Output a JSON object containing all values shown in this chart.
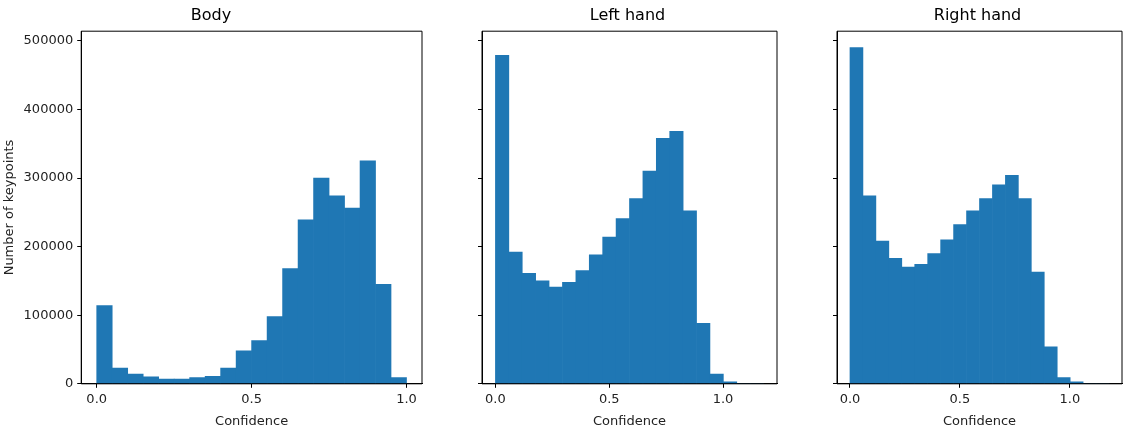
{
  "chart_data": [
    {
      "type": "histogram",
      "title": "Body",
      "xlabel": "Confidence",
      "ylabel": "Number of keypoints",
      "color": "#1f77b4",
      "bins": [
        0,
        0.05,
        0.1,
        0.15,
        0.2,
        0.25,
        0.3,
        0.35,
        0.4,
        0.45,
        0.5,
        0.55,
        0.6,
        0.65,
        0.7,
        0.75,
        0.8,
        0.85,
        0.9,
        0.95,
        1.0
      ],
      "values": [
        114000,
        23000,
        14000,
        10000,
        7000,
        7000,
        9000,
        11000,
        23000,
        48000,
        63000,
        98000,
        168000,
        239000,
        300000,
        274000,
        256000,
        325000,
        145000,
        9000
      ],
      "xlim": [
        -0.05,
        1.05
      ],
      "xticks": [
        {
          "value": 0,
          "label": "0.0"
        },
        {
          "value": 0.5,
          "label": "0.5"
        },
        {
          "value": 1,
          "label": "1.0"
        }
      ],
      "ylim": [
        0,
        514000
      ],
      "yticks": [
        0,
        100000,
        200000,
        300000,
        400000,
        500000
      ],
      "grid": false
    },
    {
      "type": "histogram",
      "title": "Left hand",
      "xlabel": "Confidence",
      "color": "#1f77b4",
      "bins": [
        0,
        0.0589,
        0.1178,
        0.1767,
        0.2356,
        0.2945,
        0.3534,
        0.4123,
        0.4712,
        0.5301,
        0.589,
        0.6479,
        0.7068,
        0.7657,
        0.8246,
        0.8835,
        0.9424,
        1.0013,
        1.0602,
        1.1191,
        1.178
      ],
      "values": [
        479000,
        192000,
        161000,
        150000,
        141000,
        148000,
        165000,
        188000,
        214000,
        241000,
        270000,
        310000,
        358000,
        368000,
        252000,
        88000,
        14000,
        3000,
        0,
        0
      ],
      "xlim": [
        -0.059,
        1.237
      ],
      "xticks": [
        {
          "value": 0,
          "label": "0.0"
        },
        {
          "value": 0.5,
          "label": "0.5"
        },
        {
          "value": 1,
          "label": "1.0"
        }
      ],
      "ylim": [
        0,
        514000
      ],
      "yticks": [
        0,
        100000,
        200000,
        300000,
        400000,
        500000
      ],
      "tick_labels": "x",
      "grid": false
    },
    {
      "type": "histogram",
      "title": "Right hand",
      "xlabel": "Confidence",
      "color": "#1f77b4",
      "bins": [
        0,
        0.0589,
        0.1178,
        0.1767,
        0.2356,
        0.2945,
        0.3534,
        0.4123,
        0.4712,
        0.5301,
        0.589,
        0.6479,
        0.7068,
        0.7657,
        0.8246,
        0.8835,
        0.9424,
        1.0013,
        1.0602,
        1.1191,
        1.178
      ],
      "values": [
        490000,
        274000,
        208000,
        183000,
        170000,
        174000,
        190000,
        210000,
        232000,
        252000,
        270000,
        290000,
        304000,
        270000,
        163000,
        54000,
        9000,
        3000,
        0,
        0
      ],
      "xlim": [
        -0.059,
        1.237
      ],
      "xticks": [
        {
          "value": 0,
          "label": "0.0"
        },
        {
          "value": 0.5,
          "label": "0.5"
        },
        {
          "value": 1,
          "label": "1.0"
        }
      ],
      "ylim": [
        0,
        514000
      ],
      "yticks": [
        0,
        100000,
        200000,
        300000,
        400000,
        500000
      ],
      "tick_labels": "x",
      "grid": false
    }
  ]
}
